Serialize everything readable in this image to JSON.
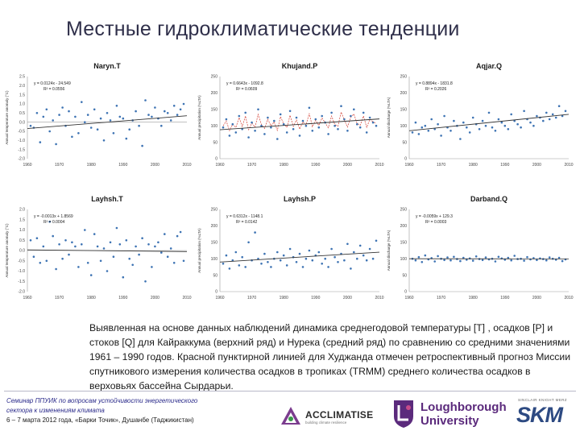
{
  "slide": {
    "title": "Местные гидроклиматические тенденции",
    "description": "Выявленная на основе данных наблюдений динамика среднегодовой температуры [T] , осадков [P] и стоков [Q] для Кайраккума (верхний ряд) и Нурека (средний ряд) по сравнению со средними значениями 1961 – 1990 годов. Красной пунктирной линией для Худжанда отмечен ретроспективный прогноз Миссии спутникового измерения количества осадков в тропиках (TRMM) среднего количества осадков в верховьях бассейна Сырдарьи."
  },
  "footer": {
    "seminar_line1": "Семинар ППУИК по вопросам устойчивости энергетического",
    "seminar_line2": "сектора к изменениям климата",
    "seminar_line3": "6 – 7 марта 2012 года, «Барки Точик», Душанбе (Таджикистан)",
    "acclimatise_name": "ACCLIMATISE",
    "acclimatise_tagline": "building climate resilience",
    "loughborough_line1": "Loughborough",
    "loughborough_line2": "University",
    "skm_top": "SINCLAIR KNIGHT MERZ",
    "skm_name": "SKM"
  },
  "colors": {
    "points": "#3d73b3",
    "trend": "#333333",
    "trmm": "#d23b2f",
    "title": "#2f2f4a"
  },
  "chart_data": [
    {
      "id": "NarynT",
      "type": "scatter",
      "title": "Naryn.T",
      "ylabel": "Annual temperature anomaly (°C)",
      "ylim": [
        -2,
        2.5
      ],
      "yticks": [
        "2.5",
        "2.0",
        "1.5",
        "1.0",
        "0.5",
        "0.0",
        "-0.5",
        "-1.0",
        "-1.5",
        "-2.0"
      ],
      "xlim": [
        1960,
        2010
      ],
      "xticks": [
        "1960",
        "1970",
        "1980",
        "1990",
        "2000",
        "2010"
      ],
      "equation": "y = 0.0124x - 24.549",
      "r2": "R² = 0.0556",
      "trend": [
        [
          1960,
          -0.35
        ],
        [
          2010,
          0.35
        ]
      ],
      "x": [
        1961,
        1962,
        1963,
        1964,
        1965,
        1966,
        1967,
        1968,
        1969,
        1970,
        1971,
        1972,
        1973,
        1974,
        1975,
        1976,
        1977,
        1978,
        1979,
        1980,
        1981,
        1982,
        1983,
        1984,
        1985,
        1986,
        1987,
        1988,
        1989,
        1990,
        1991,
        1992,
        1993,
        1994,
        1995,
        1996,
        1997,
        1998,
        1999,
        2000,
        2001,
        2002,
        2003,
        2004,
        2005,
        2006,
        2007,
        2008,
        2009
      ],
      "values": [
        -0.2,
        -0.3,
        0.5,
        -1.1,
        0.3,
        0.7,
        -0.5,
        0.1,
        -1.2,
        0.4,
        0.8,
        -0.2,
        0.6,
        -0.8,
        0.3,
        -0.6,
        1.1,
        0.0,
        0.4,
        -0.3,
        0.7,
        -0.4,
        0.2,
        -1.0,
        0.5,
        0.1,
        -0.6,
        0.9,
        0.3,
        0.2,
        -0.9,
        -0.4,
        0.1,
        0.6,
        -0.2,
        -1.3,
        1.2,
        0.4,
        0.3,
        0.8,
        0.2,
        -0.2,
        0.6,
        0.5,
        0.1,
        0.9,
        0.4,
        0.7,
        1.0
      ]
    },
    {
      "id": "KhujandP",
      "type": "scatter",
      "title": "Khujand.P",
      "ylabel": "Annual precipitation (%LTA)",
      "ylim": [
        0,
        250
      ],
      "yticks": [
        "250",
        "200",
        "150",
        "100",
        "50",
        "0"
      ],
      "xlim": [
        1960,
        2010
      ],
      "xticks": [
        "1960",
        "1970",
        "1980",
        "1990",
        "2000",
        "2010"
      ],
      "equation": "y = 0.6643x - 1092.8",
      "r2": "R² = 0.0609",
      "trend": [
        [
          1960,
          88
        ],
        [
          2010,
          121
        ]
      ],
      "x": [
        1961,
        1962,
        1963,
        1964,
        1965,
        1966,
        1967,
        1968,
        1969,
        1970,
        1971,
        1972,
        1973,
        1974,
        1975,
        1976,
        1977,
        1978,
        1979,
        1980,
        1981,
        1982,
        1983,
        1984,
        1985,
        1986,
        1987,
        1988,
        1989,
        1990,
        1991,
        1992,
        1993,
        1994,
        1995,
        1996,
        1997,
        1998,
        1999,
        2000,
        2001,
        2002,
        2003,
        2004,
        2005,
        2006,
        2007,
        2008,
        2009
      ],
      "values": [
        95,
        120,
        70,
        105,
        80,
        130,
        90,
        140,
        65,
        110,
        85,
        150,
        100,
        75,
        125,
        95,
        115,
        60,
        135,
        105,
        80,
        145,
        90,
        125,
        70,
        115,
        100,
        155,
        85,
        120,
        95,
        130,
        110,
        75,
        140,
        100,
        90,
        160,
        120,
        85,
        130,
        150,
        105,
        95,
        140,
        80,
        125,
        110,
        100
      ],
      "trmm": [
        100,
        115,
        85,
        105,
        95,
        125,
        98,
        130,
        88,
        108,
        96,
        135,
        104,
        92,
        120,
        100,
        112,
        86,
        128,
        106,
        95,
        132,
        98,
        118,
        90,
        112,
        103,
        138,
        97,
        117,
        101,
        124,
        109,
        94,
        130,
        104,
        99,
        142,
        118,
        96,
        126,
        136,
        107,
        102,
        130,
        95,
        120,
        112,
        108
      ]
    },
    {
      "id": "AqjarQ",
      "type": "scatter",
      "title": "Aqjar.Q",
      "ylabel": "Annual discharge (%LTA)",
      "ylim": [
        0,
        250
      ],
      "yticks": [
        "250",
        "200",
        "150",
        "100",
        "50",
        "0"
      ],
      "xlim": [
        1960,
        2010
      ],
      "xticks": [
        "1960",
        "1970",
        "1980",
        "1990",
        "2000",
        "2010"
      ],
      "equation": "y = 0.8894x - 1831.8",
      "r2": "R² = 0.2026",
      "trend": [
        [
          1960,
          85
        ],
        [
          2010,
          135
        ]
      ],
      "x": [
        1961,
        1962,
        1963,
        1964,
        1965,
        1966,
        1967,
        1968,
        1969,
        1970,
        1971,
        1972,
        1973,
        1974,
        1975,
        1976,
        1977,
        1978,
        1979,
        1980,
        1981,
        1982,
        1983,
        1984,
        1985,
        1986,
        1987,
        1988,
        1989,
        1990,
        1991,
        1992,
        1993,
        1994,
        1995,
        1996,
        1997,
        1998,
        1999,
        2000,
        2001,
        2002,
        2003,
        2004,
        2005,
        2006,
        2007,
        2008,
        2009
      ],
      "values": [
        80,
        110,
        75,
        95,
        100,
        85,
        120,
        90,
        105,
        70,
        130,
        95,
        85,
        115,
        100,
        60,
        110,
        95,
        80,
        125,
        105,
        90,
        115,
        100,
        140,
        95,
        85,
        120,
        110,
        100,
        90,
        135,
        115,
        105,
        95,
        145,
        120,
        110,
        100,
        130,
        125,
        115,
        140,
        120,
        135,
        125,
        160,
        130,
        145
      ]
    },
    {
      "id": "LayhshT",
      "type": "scatter",
      "title": "Layhsh.T",
      "ylabel": "Annual temperature anomaly (°C)",
      "ylim": [
        -2,
        2
      ],
      "yticks": [
        "2.0",
        "1.5",
        "1.0",
        "0.5",
        "0.0",
        "-0.5",
        "-1.0",
        "-1.5",
        "-2.0"
      ],
      "xlim": [
        1960,
        2010
      ],
      "xticks": [
        "1960",
        "1970",
        "1980",
        "1990",
        "2000",
        "2010"
      ],
      "equation": "y = -0.0013x + 1.8569",
      "r2": "R² = 0.0004",
      "trend": [
        [
          1960,
          0.03
        ],
        [
          2010,
          -0.05
        ]
      ],
      "x": [
        1961,
        1962,
        1963,
        1964,
        1965,
        1966,
        1967,
        1968,
        1969,
        1970,
        1971,
        1972,
        1973,
        1974,
        1975,
        1976,
        1977,
        1978,
        1979,
        1980,
        1981,
        1982,
        1983,
        1984,
        1985,
        1986,
        1987,
        1988,
        1989,
        1990,
        1991,
        1992,
        1993,
        1994,
        1995,
        1996,
        1997,
        1998,
        1999,
        2000,
        2001,
        2002,
        2003,
        2004,
        2005,
        2006,
        2007,
        2008,
        2009
      ],
      "values": [
        0.5,
        -0.3,
        0.6,
        -0.6,
        0.2,
        -0.5,
        1.4,
        0.7,
        -0.9,
        0.3,
        -0.4,
        0.5,
        -0.2,
        0.4,
        0.2,
        -0.8,
        0.3,
        1.0,
        -0.6,
        -1.2,
        0.8,
        0.2,
        -0.5,
        0.1,
        -1.0,
        0.4,
        -0.3,
        1.1,
        0.3,
        -1.3,
        0.5,
        -0.4,
        -0.7,
        0.2,
        -0.2,
        0.6,
        -1.5,
        0.3,
        -0.8,
        0.2,
        0.4,
        -0.1,
        0.8,
        -0.3,
        0.1,
        -0.6,
        0.7,
        0.9,
        -0.5
      ]
    },
    {
      "id": "LayhshP",
      "type": "scatter",
      "title": "Layhsh.P",
      "ylabel": "Annual precipitation (%LTA)",
      "ylim": [
        0,
        250
      ],
      "yticks": [
        "250",
        "200",
        "150",
        "100",
        "50",
        "0"
      ],
      "xlim": [
        1960,
        2010
      ],
      "xticks": [
        "1960",
        "1970",
        "1980",
        "1990",
        "2000",
        "2010"
      ],
      "equation": "y = 0.6312x - 1148.1",
      "r2": "R² = 0.0142",
      "trend": [
        [
          1960,
          90
        ],
        [
          2010,
          120
        ]
      ],
      "x": [
        1961,
        1962,
        1963,
        1964,
        1965,
        1966,
        1967,
        1968,
        1969,
        1970,
        1971,
        1972,
        1973,
        1974,
        1975,
        1976,
        1977,
        1978,
        1979,
        1980,
        1981,
        1982,
        1983,
        1984,
        1985,
        1986,
        1987,
        1988,
        1989,
        1990,
        1991,
        1992,
        1993,
        1994,
        1995,
        1996,
        1997,
        1998,
        1999,
        2000,
        2001,
        2002,
        2003,
        2004,
        2005,
        2006,
        2007,
        2008,
        2009
      ],
      "values": [
        85,
        110,
        70,
        95,
        120,
        80,
        105,
        75,
        150,
        95,
        180,
        100,
        85,
        115,
        90,
        75,
        100,
        120,
        95,
        110,
        80,
        130,
        105,
        90,
        115,
        75,
        100,
        125,
        95,
        110,
        120,
        85,
        100,
        75,
        130,
        105,
        90,
        115,
        95,
        145,
        70,
        120,
        100,
        140,
        110,
        95,
        130,
        100,
        155
      ]
    },
    {
      "id": "DarbandQ",
      "type": "scatter",
      "title": "Darband.Q",
      "ylabel": "Annual discharge (%LTA)",
      "ylim": [
        0,
        250
      ],
      "yticks": [
        "250",
        "200",
        "150",
        "100",
        "50",
        "0"
      ],
      "xlim": [
        1960,
        2010
      ],
      "xticks": [
        "1960",
        "1970",
        "1980",
        "1990",
        "2000",
        "2010"
      ],
      "equation": "y = -0.0059x + 129.3",
      "r2": "R² = 0.0003",
      "trend": [
        [
          1960,
          100
        ],
        [
          2010,
          99.7
        ]
      ],
      "x": [
        1961,
        1962,
        1963,
        1964,
        1965,
        1966,
        1967,
        1968,
        1969,
        1970,
        1971,
        1972,
        1973,
        1974,
        1975,
        1976,
        1977,
        1978,
        1979,
        1980,
        1981,
        1982,
        1983,
        1984,
        1985,
        1986,
        1987,
        1988,
        1989,
        1990,
        1991,
        1992,
        1993,
        1994,
        1995,
        1996,
        1997,
        1998,
        1999,
        2000,
        2001,
        2002,
        2003,
        2004,
        2005,
        2006,
        2007,
        2008,
        2009
      ],
      "values": [
        100,
        95,
        105,
        90,
        110,
        98,
        102,
        92,
        108,
        100,
        96,
        104,
        95,
        106,
        99,
        93,
        103,
        97,
        101,
        94,
        107,
        99,
        96,
        104,
        98,
        100,
        92,
        106,
        101,
        97,
        103,
        95,
        109,
        99,
        100,
        94,
        105,
        98,
        102,
        96,
        101,
        99,
        95,
        104,
        100,
        97,
        103,
        93,
        98
      ]
    }
  ]
}
